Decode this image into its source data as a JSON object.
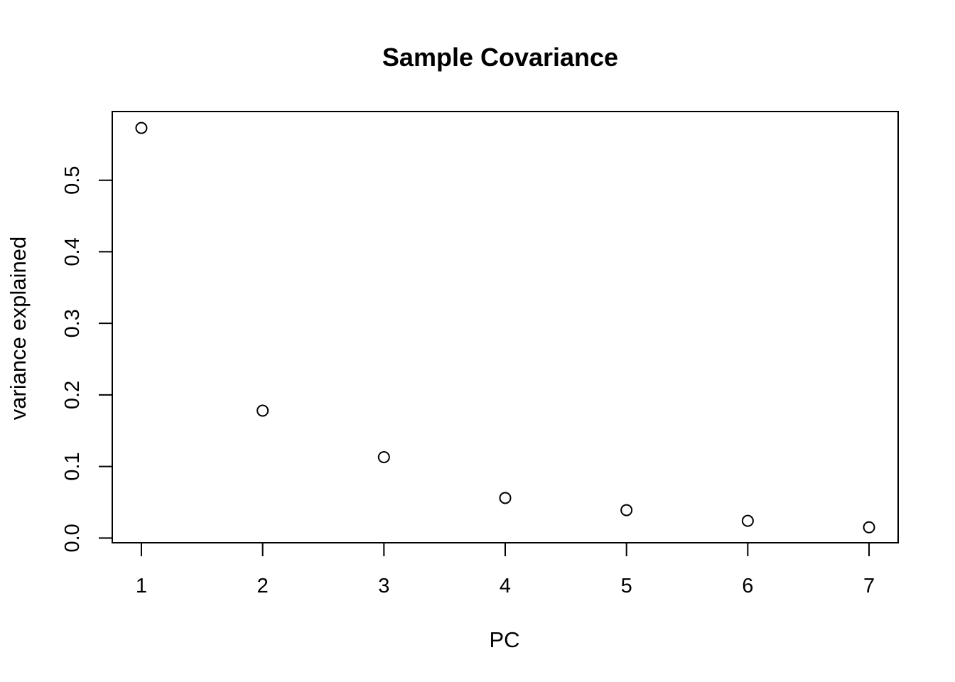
{
  "chart_data": {
    "type": "scatter",
    "title": "Sample Covariance",
    "xlabel": "PC",
    "ylabel": "variance explained",
    "x": [
      1,
      2,
      3,
      4,
      5,
      6,
      7
    ],
    "y": [
      0.573,
      0.178,
      0.113,
      0.056,
      0.039,
      0.024,
      0.015
    ],
    "xlim": [
      0.76,
      7.24
    ],
    "ylim": [
      -0.0066,
      0.596
    ],
    "x_ticks": [
      1,
      2,
      3,
      4,
      5,
      6,
      7
    ],
    "x_tick_labels": [
      "1",
      "2",
      "3",
      "4",
      "5",
      "6",
      "7"
    ],
    "y_ticks": [
      0.0,
      0.1,
      0.2,
      0.3,
      0.4,
      0.5
    ],
    "y_tick_labels": [
      "0.0",
      "0.1",
      "0.2",
      "0.3",
      "0.4",
      "0.5"
    ],
    "marker": "open-circle",
    "grid": false,
    "legend": "none",
    "colors": {
      "marker": "#000000",
      "frame": "#000000",
      "background": "#ffffff"
    }
  }
}
